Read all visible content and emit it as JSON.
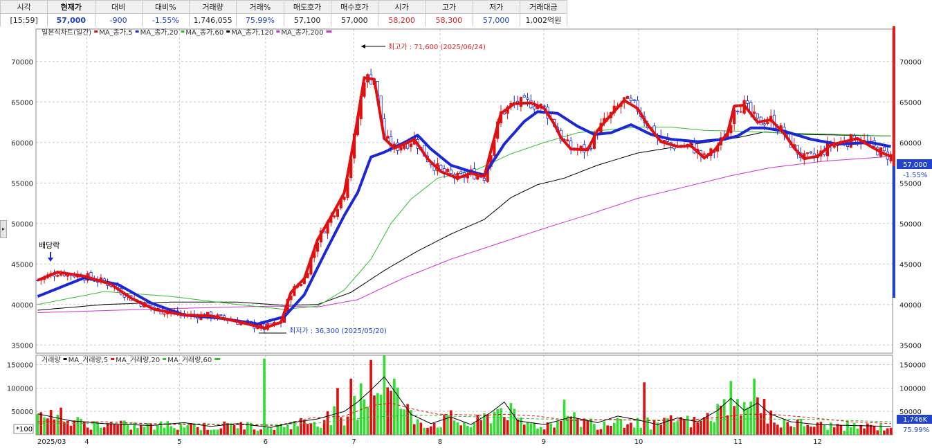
{
  "quote": {
    "headers": [
      "시각",
      "현재가",
      "대비",
      "대비%",
      "거래량",
      "거래%",
      "매도호가",
      "매수호가",
      "시가",
      "고가",
      "저가",
      "거래대금"
    ],
    "values": [
      "[15:59]",
      "57,000",
      "-900",
      "-1.55%",
      "1,746,055",
      "75.99%",
      "57,100",
      "57,000",
      "58,200",
      "58,300",
      "57,000",
      "1,002억원"
    ]
  },
  "price_legend": [
    {
      "text": "일본식차트(일간)",
      "color": "#333333"
    },
    {
      "text": "MA_종가,5",
      "color": "#e01010"
    },
    {
      "text": "MA_종가,20",
      "color": "#1a28d8"
    },
    {
      "text": "MA_종가,60",
      "color": "#30c030"
    },
    {
      "text": "MA_종가,120",
      "color": "#000000"
    },
    {
      "text": "MA_종가,200",
      "color": "#d030d0"
    }
  ],
  "volume_legend": [
    {
      "text": "거래량",
      "color": "#e01010"
    },
    {
      "text": "MA_거래량,5",
      "color": "#000000"
    },
    {
      "text": "MA_거래량,20",
      "color": "#e01010"
    },
    {
      "text": "MA_거래량,60",
      "color": "#30c030"
    }
  ],
  "annotations": {
    "high": "최고가 : 71,600 (2025/06/24)",
    "low": "최저가 : 36,300 (2025/05/20)",
    "dividend": "배당락",
    "current_price": "57,000",
    "current_change": "-1.55%",
    "current_volume": "1,746K",
    "volume_pct": "75.99%",
    "volume_scale": "*100"
  },
  "chart_data": {
    "type": "candlestick",
    "x_labels": [
      "2025/03",
      "4",
      "5",
      "6",
      "7",
      "8",
      "9",
      "10",
      "11",
      "12"
    ],
    "price_ticks": [
      35000,
      40000,
      45000,
      50000,
      55000,
      60000,
      65000,
      70000
    ],
    "price_range": [
      34000,
      74000
    ],
    "volume_ticks": [
      50000,
      100000,
      150000
    ],
    "volume_range": [
      0,
      170000
    ],
    "grid": true,
    "series_anchors": {
      "ma5": [
        [
          0,
          43000
        ],
        [
          6,
          44000
        ],
        [
          14,
          43500
        ],
        [
          22,
          42500
        ],
        [
          28,
          40800
        ],
        [
          35,
          39400
        ],
        [
          44,
          38700
        ],
        [
          52,
          38600
        ],
        [
          60,
          37900
        ],
        [
          68,
          37100
        ],
        [
          73,
          37800
        ],
        [
          76,
          41500
        ],
        [
          80,
          43200
        ],
        [
          84,
          48000
        ],
        [
          88,
          50800
        ],
        [
          92,
          53800
        ],
        [
          95,
          60500
        ],
        [
          98,
          68000
        ],
        [
          101,
          67800
        ],
        [
          104,
          60500
        ],
        [
          107,
          59300
        ],
        [
          110,
          59800
        ],
        [
          113,
          60400
        ],
        [
          117,
          58000
        ],
        [
          121,
          56400
        ],
        [
          126,
          55600
        ],
        [
          130,
          56200
        ],
        [
          134,
          55800
        ],
        [
          136,
          59000
        ],
        [
          139,
          63600
        ],
        [
          143,
          64800
        ],
        [
          148,
          64900
        ],
        [
          152,
          64200
        ],
        [
          155,
          62300
        ],
        [
          157,
          60600
        ],
        [
          160,
          59200
        ],
        [
          165,
          59100
        ],
        [
          168,
          61500
        ],
        [
          172,
          63400
        ],
        [
          176,
          65200
        ],
        [
          180,
          64200
        ],
        [
          183,
          62200
        ],
        [
          187,
          60100
        ],
        [
          192,
          59500
        ],
        [
          196,
          59600
        ],
        [
          200,
          58100
        ],
        [
          203,
          59000
        ],
        [
          207,
          61200
        ],
        [
          209,
          64500
        ],
        [
          212,
          64600
        ],
        [
          216,
          62500
        ],
        [
          220,
          62800
        ],
        [
          224,
          61100
        ],
        [
          227,
          59300
        ],
        [
          230,
          58000
        ],
        [
          234,
          58300
        ],
        [
          238,
          59700
        ],
        [
          242,
          60100
        ],
        [
          246,
          60500
        ],
        [
          250,
          59500
        ],
        [
          254,
          58600
        ],
        [
          256,
          58300
        ]
      ],
      "ma20": [
        [
          0,
          41000
        ],
        [
          14,
          43300
        ],
        [
          24,
          42500
        ],
        [
          34,
          40200
        ],
        [
          44,
          38700
        ],
        [
          55,
          38300
        ],
        [
          66,
          37600
        ],
        [
          74,
          38500
        ],
        [
          80,
          41200
        ],
        [
          86,
          46200
        ],
        [
          92,
          51000
        ],
        [
          96,
          53800
        ],
        [
          100,
          58200
        ],
        [
          104,
          58800
        ],
        [
          110,
          60000
        ],
        [
          114,
          60900
        ],
        [
          118,
          59200
        ],
        [
          124,
          57200
        ],
        [
          130,
          56400
        ],
        [
          134,
          56000
        ],
        [
          140,
          59800
        ],
        [
          146,
          62600
        ],
        [
          150,
          63800
        ],
        [
          156,
          63600
        ],
        [
          162,
          62000
        ],
        [
          167,
          61000
        ],
        [
          172,
          61200
        ],
        [
          178,
          62200
        ],
        [
          184,
          61000
        ],
        [
          190,
          60400
        ],
        [
          198,
          60100
        ],
        [
          206,
          60400
        ],
        [
          210,
          60800
        ],
        [
          214,
          61800
        ],
        [
          218,
          61800
        ],
        [
          224,
          61400
        ],
        [
          232,
          60400
        ],
        [
          240,
          59800
        ],
        [
          250,
          60000
        ],
        [
          256,
          59500
        ]
      ],
      "ma60": [
        [
          0,
          40000
        ],
        [
          20,
          41600
        ],
        [
          40,
          41000
        ],
        [
          60,
          40000
        ],
        [
          74,
          39400
        ],
        [
          84,
          39800
        ],
        [
          92,
          41800
        ],
        [
          100,
          45600
        ],
        [
          106,
          50000
        ],
        [
          112,
          53000
        ],
        [
          120,
          55600
        ],
        [
          132,
          56700
        ],
        [
          142,
          58600
        ],
        [
          152,
          60000
        ],
        [
          162,
          61200
        ],
        [
          172,
          61600
        ],
        [
          180,
          61900
        ],
        [
          190,
          61900
        ],
        [
          200,
          61500
        ],
        [
          210,
          61400
        ],
        [
          222,
          61200
        ],
        [
          240,
          61000
        ],
        [
          256,
          60800
        ]
      ],
      "ma120": [
        [
          0,
          39300
        ],
        [
          20,
          40000
        ],
        [
          40,
          40300
        ],
        [
          60,
          40300
        ],
        [
          74,
          39900
        ],
        [
          84,
          40000
        ],
        [
          94,
          41500
        ],
        [
          104,
          44200
        ],
        [
          114,
          46600
        ],
        [
          124,
          48700
        ],
        [
          134,
          50500
        ],
        [
          142,
          53200
        ],
        [
          150,
          54800
        ],
        [
          158,
          55600
        ],
        [
          168,
          57200
        ],
        [
          180,
          58700
        ],
        [
          192,
          59500
        ],
        [
          202,
          60100
        ],
        [
          210,
          60600
        ],
        [
          218,
          61300
        ],
        [
          230,
          61000
        ],
        [
          256,
          60800
        ]
      ],
      "ma200": [
        [
          0,
          39000
        ],
        [
          40,
          39500
        ],
        [
          70,
          39800
        ],
        [
          84,
          39700
        ],
        [
          96,
          40600
        ],
        [
          110,
          43300
        ],
        [
          124,
          45600
        ],
        [
          138,
          47500
        ],
        [
          152,
          49400
        ],
        [
          166,
          51200
        ],
        [
          180,
          53100
        ],
        [
          196,
          54700
        ],
        [
          208,
          55900
        ],
        [
          220,
          56900
        ],
        [
          236,
          57700
        ],
        [
          250,
          58100
        ],
        [
          256,
          58300
        ]
      ],
      "vol_ma20": [
        [
          0,
          28000
        ],
        [
          20,
          28000
        ],
        [
          40,
          22000
        ],
        [
          56,
          22000
        ],
        [
          72,
          20000
        ],
        [
          82,
          36000
        ],
        [
          92,
          40000
        ],
        [
          100,
          62000
        ],
        [
          106,
          68000
        ],
        [
          112,
          56000
        ],
        [
          120,
          44000
        ],
        [
          134,
          42000
        ],
        [
          140,
          44000
        ],
        [
          150,
          40000
        ],
        [
          160,
          30000
        ],
        [
          172,
          33000
        ],
        [
          184,
          30000
        ],
        [
          196,
          32000
        ],
        [
          206,
          38000
        ],
        [
          212,
          44000
        ],
        [
          220,
          44000
        ],
        [
          230,
          38000
        ],
        [
          244,
          28000
        ],
        [
          256,
          24000
        ]
      ],
      "vol_ma60": [
        [
          0,
          24000
        ],
        [
          40,
          24000
        ],
        [
          70,
          22000
        ],
        [
          84,
          25000
        ],
        [
          100,
          38000
        ],
        [
          114,
          42000
        ],
        [
          134,
          38000
        ],
        [
          150,
          34000
        ],
        [
          172,
          32000
        ],
        [
          196,
          31000
        ],
        [
          214,
          34000
        ],
        [
          232,
          33000
        ],
        [
          256,
          28000
        ]
      ],
      "vol_ma5": [
        [
          0,
          45000
        ],
        [
          10,
          30000
        ],
        [
          20,
          24000
        ],
        [
          34,
          20000
        ],
        [
          44,
          26000
        ],
        [
          52,
          18000
        ],
        [
          60,
          24000
        ],
        [
          70,
          16000
        ],
        [
          78,
          28000
        ],
        [
          84,
          34000
        ],
        [
          92,
          50000
        ],
        [
          96,
          70000
        ],
        [
          100,
          96000
        ],
        [
          104,
          124000
        ],
        [
          108,
          84000
        ],
        [
          112,
          44000
        ],
        [
          118,
          24000
        ],
        [
          124,
          38000
        ],
        [
          130,
          22000
        ],
        [
          136,
          48000
        ],
        [
          140,
          70000
        ],
        [
          144,
          30000
        ],
        [
          152,
          22000
        ],
        [
          160,
          38000
        ],
        [
          168,
          26000
        ],
        [
          174,
          40000
        ],
        [
          180,
          32000
        ],
        [
          186,
          22000
        ],
        [
          192,
          36000
        ],
        [
          198,
          28000
        ],
        [
          204,
          52000
        ],
        [
          208,
          78000
        ],
        [
          212,
          52000
        ],
        [
          216,
          68000
        ],
        [
          220,
          44000
        ],
        [
          226,
          28000
        ],
        [
          234,
          22000
        ],
        [
          244,
          20000
        ],
        [
          256,
          18000
        ]
      ]
    },
    "volume_spikes": [
      [
        7,
        58000
      ],
      [
        68,
        163000
      ],
      [
        90,
        100000
      ],
      [
        94,
        120000
      ],
      [
        97,
        110000
      ],
      [
        100,
        160000
      ],
      [
        104,
        170000
      ],
      [
        107,
        120000
      ],
      [
        158,
        75000
      ],
      [
        182,
        112000
      ],
      [
        208,
        115000
      ],
      [
        212,
        70000
      ],
      [
        215,
        120000
      ],
      [
        220,
        52000
      ]
    ],
    "n_bars": 257,
    "seed": 7
  }
}
